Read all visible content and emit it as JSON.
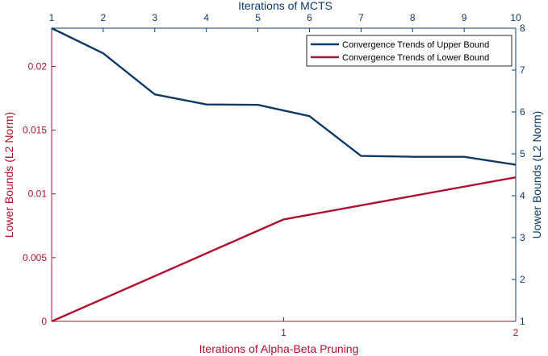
{
  "chart_data": {
    "type": "line",
    "title": "",
    "colors": {
      "upper": "#0e3a66",
      "lower": "#b0102e",
      "plot_background": "#ffffff",
      "axis_box": "#262626"
    },
    "axes": {
      "bottom": {
        "label": "Iterations of Alpha-Beta Pruning",
        "range": [
          0,
          2
        ],
        "ticks": [
          1,
          2
        ],
        "tick_labels": [
          "1",
          "2"
        ]
      },
      "top": {
        "label": "Iterations of MCTS",
        "range": [
          1,
          10
        ],
        "ticks": [
          1,
          2,
          3,
          4,
          5,
          6,
          7,
          8,
          9,
          10
        ],
        "tick_labels": [
          "1",
          "2",
          "3",
          "4",
          "5",
          "6",
          "7",
          "8",
          "9",
          "10"
        ]
      },
      "left": {
        "label": "Lower Bounds (L2 Norm)",
        "range": [
          0,
          0.023
        ],
        "ticks": [
          0,
          0.005,
          0.01,
          0.015,
          0.02
        ],
        "tick_labels": [
          "0",
          "0.005",
          "0.01",
          "0.015",
          "0.02"
        ]
      },
      "right": {
        "label": "Uower Bounds (L2 Norm)",
        "range": [
          1,
          8
        ],
        "ticks": [
          1,
          2,
          3,
          4,
          5,
          6,
          7,
          8
        ],
        "tick_labels": [
          "1",
          "2",
          "3",
          "4",
          "5",
          "6",
          "7",
          "8"
        ]
      }
    },
    "legend": {
      "position": "top-right",
      "entries": [
        "Convergence Trends of Upper Bound",
        "Convergence Trends of Lower Bound"
      ]
    },
    "series": [
      {
        "name": "Convergence Trends of Upper Bound",
        "axis_x": "top",
        "axis_y": "right",
        "x": [
          1,
          2,
          3,
          4,
          5,
          6,
          7,
          8,
          9,
          10
        ],
        "y": [
          8.0,
          7.4,
          6.42,
          6.18,
          6.17,
          5.9,
          4.95,
          4.93,
          4.93,
          4.74
        ]
      },
      {
        "name": "Convergence Trends of Lower Bound",
        "axis_x": "bottom",
        "axis_y": "left",
        "x": [
          0,
          1,
          2
        ],
        "y": [
          0,
          0.008,
          0.0113
        ]
      }
    ],
    "grid": false
  }
}
